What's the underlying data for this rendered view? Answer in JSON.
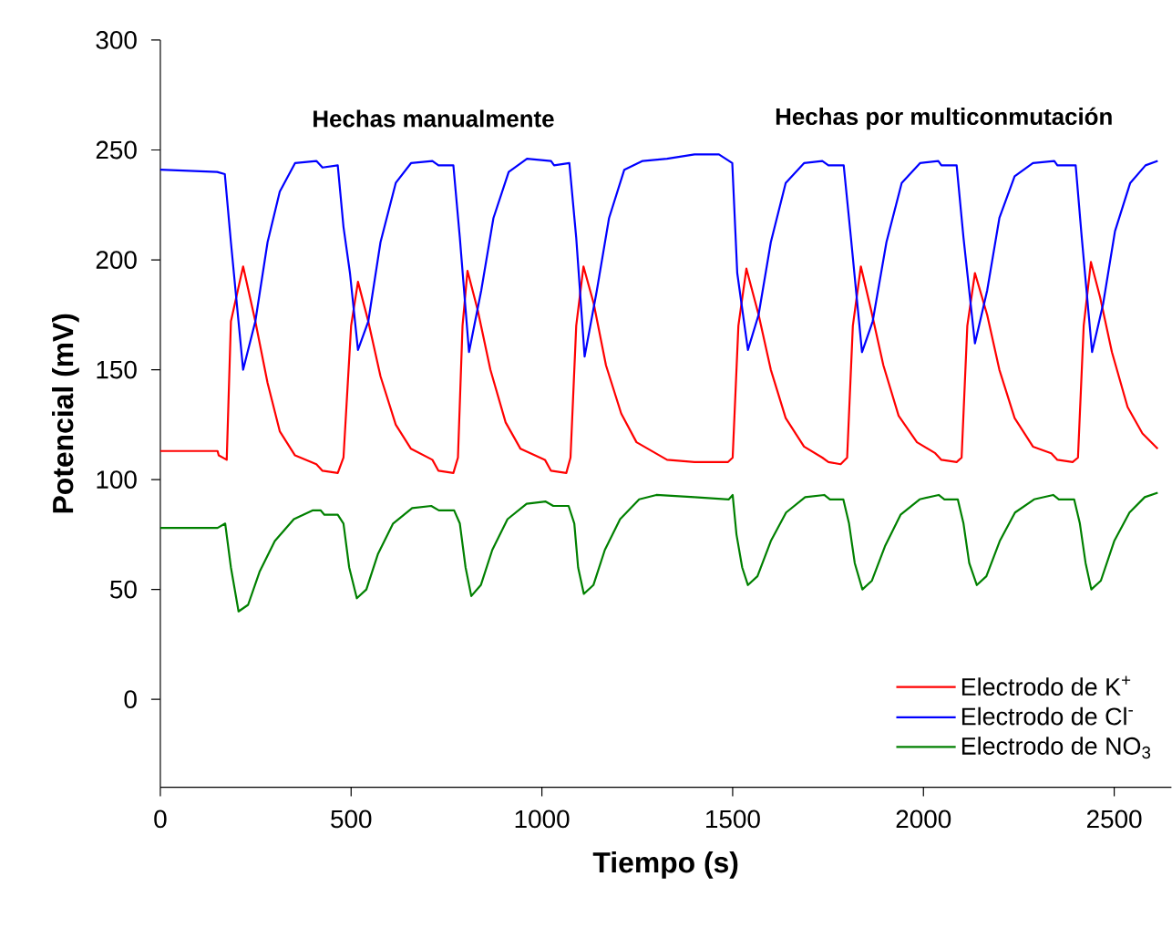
{
  "chart_data": {
    "type": "line",
    "xlabel": "Tiempo (s)",
    "ylabel": "Potencial (mV)",
    "annotations": [
      "Hechas manualmente",
      "Hechas por multiconmutación"
    ],
    "xlim": [
      0,
      2650
    ],
    "ylim": [
      -40,
      300
    ],
    "xticks": [
      0,
      500,
      1000,
      1500,
      2000,
      2500
    ],
    "yticks": [
      0,
      50,
      100,
      150,
      200,
      250,
      300
    ],
    "legend": "bottom right",
    "line_style": "solid",
    "series": [
      {
        "name": "Electrodo de K$^{+}$",
        "color": "#ff0000",
        "x": [
          0,
          150,
          153,
          174,
          185,
          217,
          249,
          281,
          313,
          353,
          409,
          425,
          465,
          480,
          500,
          518,
          545,
          577,
          617,
          657,
          713,
          729,
          768,
          780,
          792,
          805,
          832,
          865,
          905,
          944,
          1008,
          1024,
          1064,
          1075,
          1090,
          1109,
          1136,
          1168,
          1208,
          1248,
          1328,
          1400,
          1488,
          1500,
          1515,
          1536,
          1568,
          1600,
          1639,
          1687,
          1735,
          1751,
          1783,
          1800,
          1815,
          1836,
          1863,
          1895,
          1935,
          1983,
          2031,
          2047,
          2087,
          2100,
          2115,
          2135,
          2167,
          2199,
          2239,
          2287,
          2335,
          2351,
          2391,
          2405,
          2420,
          2439,
          2463,
          2494,
          2535,
          2574,
          2614
        ],
        "values": [
          113,
          113,
          111,
          109,
          172,
          197,
          172,
          144,
          122,
          111,
          107,
          104,
          103,
          110,
          170,
          190,
          172,
          147,
          125,
          114,
          109,
          104,
          103,
          110,
          170,
          195,
          177,
          150,
          126,
          114,
          109,
          104,
          103,
          110,
          170,
          197,
          180,
          152,
          130,
          117,
          109,
          108,
          108,
          110,
          170,
          196,
          175,
          150,
          128,
          115,
          110,
          108,
          107,
          110,
          170,
          197,
          177,
          152,
          129,
          117,
          112,
          109,
          108,
          110,
          170,
          194,
          175,
          150,
          128,
          115,
          112,
          109,
          108,
          110,
          170,
          199,
          183,
          158,
          133,
          121,
          114
        ]
      },
      {
        "name": "Electrodo de Cl$^{-}$",
        "color": "#0000ff",
        "x": [
          0,
          149,
          169,
          185,
          217,
          249,
          281,
          313,
          353,
          409,
          425,
          465,
          480,
          497,
          518,
          545,
          577,
          617,
          657,
          713,
          729,
          768,
          785,
          809,
          841,
          873,
          913,
          961,
          1024,
          1032,
          1072,
          1090,
          1112,
          1144,
          1176,
          1216,
          1264,
          1328,
          1400,
          1464,
          1499,
          1512,
          1540,
          1568,
          1600,
          1639,
          1687,
          1735,
          1751,
          1791,
          1810,
          1839,
          1867,
          1903,
          1943,
          1991,
          2039,
          2047,
          2087,
          2105,
          2135,
          2167,
          2199,
          2239,
          2287,
          2343,
          2351,
          2399,
          2415,
          2442,
          2471,
          2502,
          2542,
          2582,
          2614
        ],
        "values": [
          241,
          240,
          239,
          208,
          150,
          172,
          208,
          231,
          244,
          245,
          242,
          243,
          215,
          194,
          159,
          172,
          208,
          235,
          244,
          245,
          243,
          243,
          210,
          158,
          186,
          219,
          240,
          246,
          245,
          243,
          244,
          210,
          156,
          186,
          219,
          241,
          245,
          246,
          248,
          248,
          244,
          194,
          159,
          175,
          208,
          235,
          244,
          245,
          243,
          243,
          210,
          158,
          172,
          208,
          235,
          244,
          245,
          243,
          243,
          210,
          162,
          186,
          219,
          238,
          244,
          245,
          243,
          243,
          210,
          158,
          180,
          213,
          235,
          243,
          245
        ]
      },
      {
        "name": "Electrodo de NO$_{3}$",
        "color": "#008000",
        "x": [
          0,
          150,
          170,
          185,
          205,
          230,
          260,
          300,
          350,
          400,
          420,
          430,
          465,
          480,
          495,
          515,
          540,
          570,
          610,
          660,
          710,
          730,
          770,
          785,
          800,
          815,
          840,
          870,
          910,
          960,
          1010,
          1030,
          1070,
          1085,
          1095,
          1110,
          1135,
          1165,
          1205,
          1255,
          1300,
          1400,
          1490,
          1500,
          1510,
          1525,
          1540,
          1565,
          1600,
          1640,
          1690,
          1740,
          1755,
          1790,
          1805,
          1820,
          1840,
          1865,
          1900,
          1940,
          1990,
          2040,
          2055,
          2090,
          2105,
          2120,
          2140,
          2165,
          2200,
          2240,
          2290,
          2340,
          2355,
          2395,
          2410,
          2425,
          2440,
          2465,
          2500,
          2540,
          2580,
          2614
        ],
        "values": [
          78,
          78,
          80,
          60,
          40,
          43,
          58,
          72,
          82,
          86,
          86,
          84,
          84,
          80,
          60,
          46,
          50,
          66,
          80,
          87,
          88,
          86,
          86,
          80,
          60,
          47,
          52,
          68,
          82,
          89,
          90,
          88,
          88,
          80,
          60,
          48,
          52,
          68,
          82,
          91,
          93,
          92,
          91,
          93,
          75,
          60,
          52,
          56,
          72,
          85,
          92,
          93,
          91,
          91,
          80,
          62,
          50,
          54,
          70,
          84,
          91,
          93,
          91,
          91,
          80,
          62,
          52,
          56,
          72,
          85,
          91,
          93,
          91,
          91,
          80,
          62,
          50,
          54,
          72,
          85,
          92,
          94
        ]
      }
    ]
  }
}
